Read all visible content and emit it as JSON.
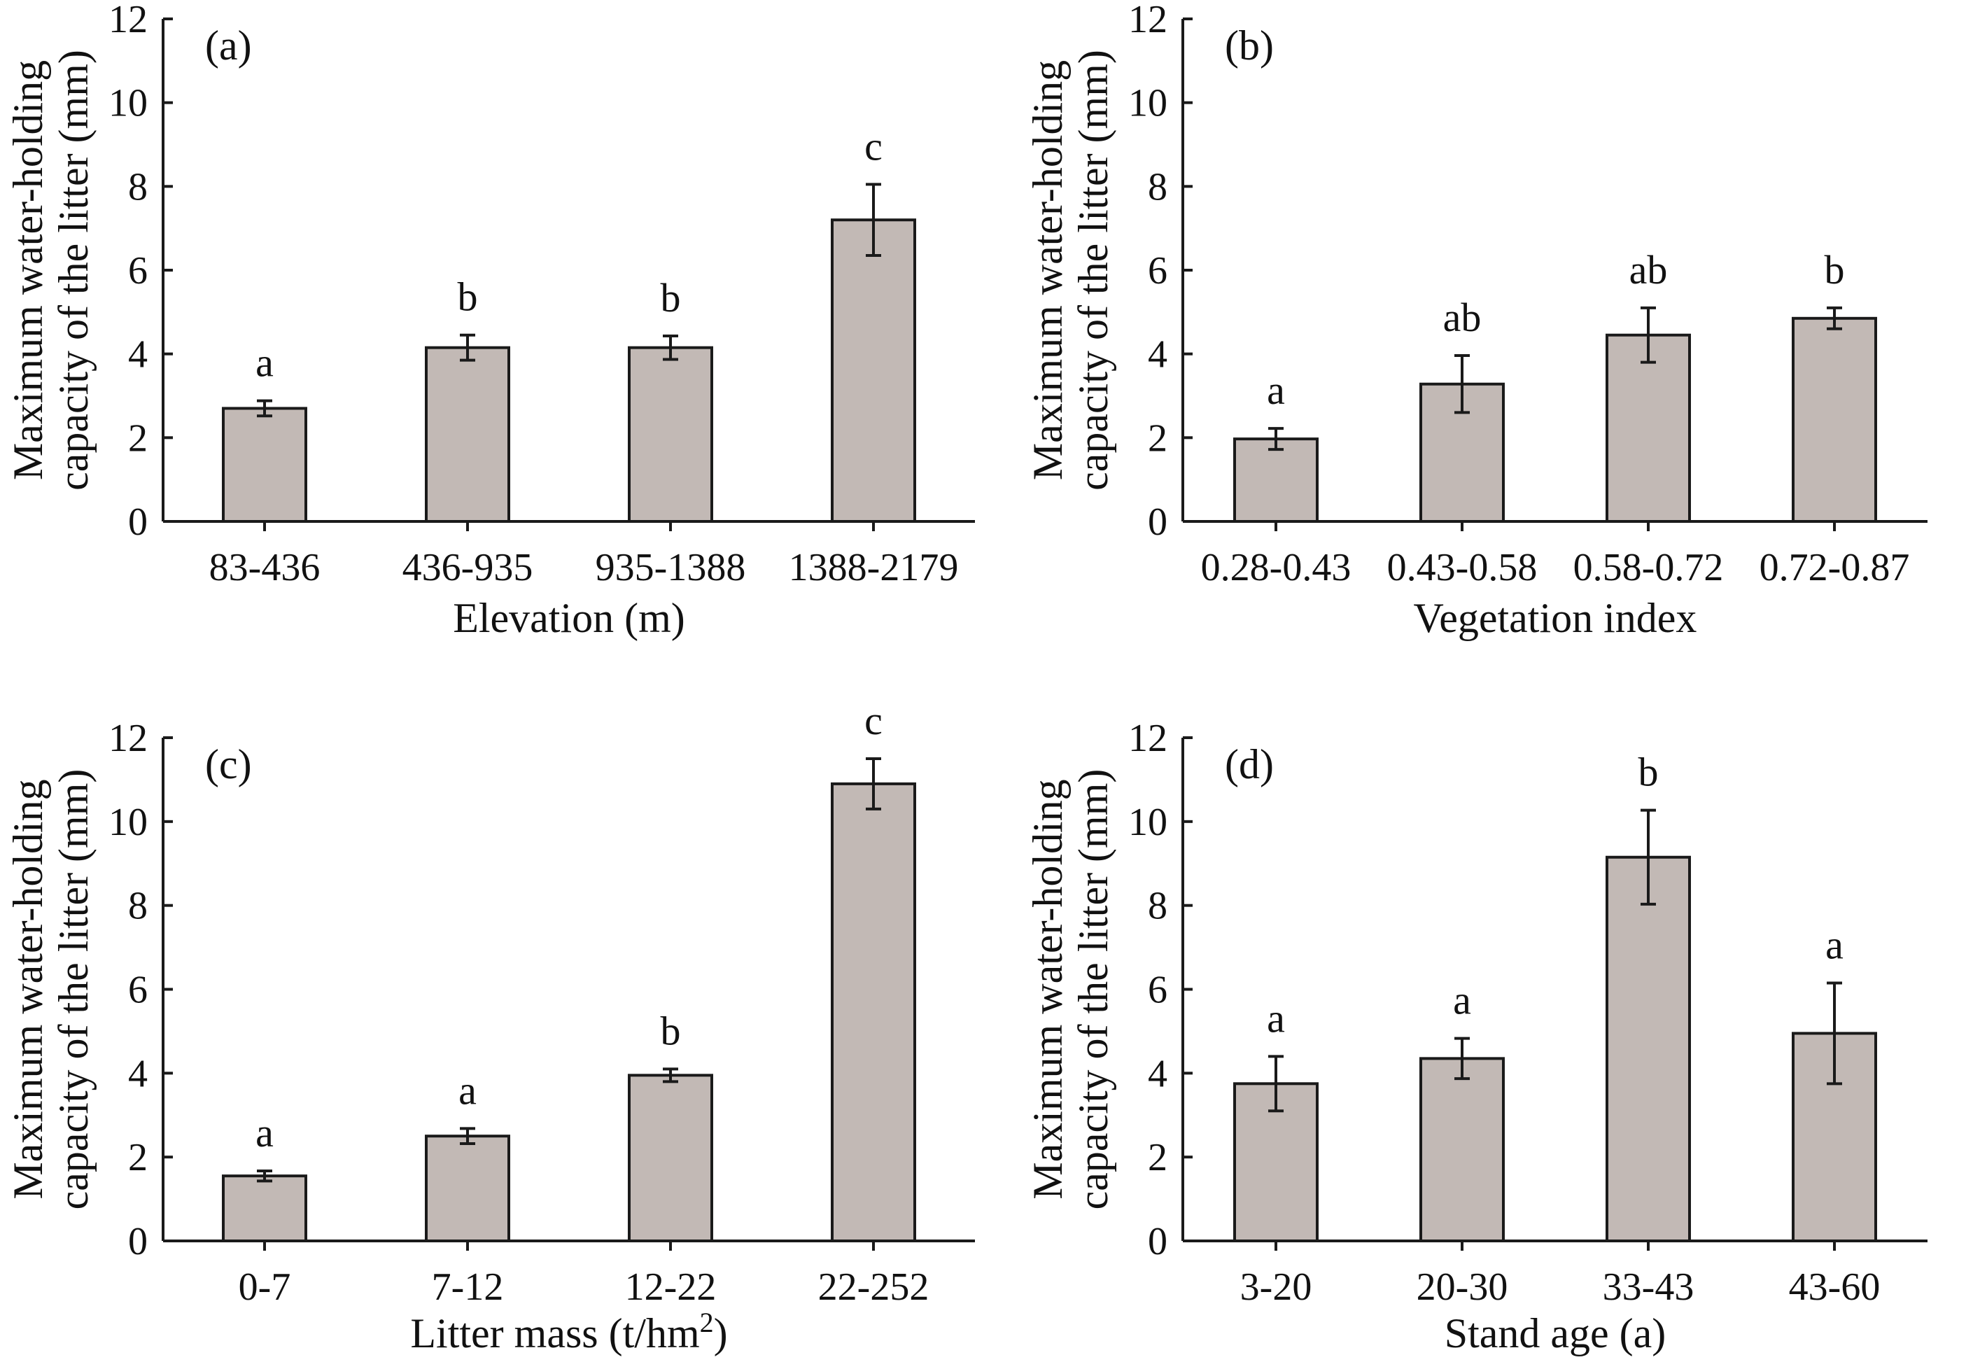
{
  "colors": {
    "bar_fill": "#c2b9b5",
    "ink": "#1a1a1a",
    "background": "#ffffff"
  },
  "chart_data": [
    {
      "panel": "(a)",
      "type": "bar",
      "title": "",
      "xlabel": "Elevation (m)",
      "ylabel": [
        "Maximum water-holding",
        "capacity of the litter (mm)"
      ],
      "ylim": [
        0,
        12
      ],
      "yticks": [
        "0",
        "2",
        "4",
        "6",
        "8",
        "10",
        "12"
      ],
      "categories": [
        "83-436",
        "436-935",
        "935-1388",
        "1388-2179"
      ],
      "values": [
        2.7,
        4.15,
        4.15,
        7.2
      ],
      "errors": [
        0.18,
        0.3,
        0.28,
        0.85
      ],
      "letters": [
        "a",
        "b",
        "b",
        "c"
      ],
      "grid": false
    },
    {
      "panel": "(b)",
      "type": "bar",
      "title": "",
      "xlabel": "Vegetation index",
      "ylabel": [
        "Maximum water-holding",
        "capacity of the litter (mm)"
      ],
      "ylim": [
        0,
        12
      ],
      "yticks": [
        "0",
        "2",
        "4",
        "6",
        "8",
        "10",
        "12"
      ],
      "categories": [
        "0.28-0.43",
        "0.43-0.58",
        "0.58-0.72",
        "0.72-0.87"
      ],
      "values": [
        1.97,
        3.28,
        4.45,
        4.85
      ],
      "errors": [
        0.25,
        0.68,
        0.65,
        0.25
      ],
      "letters": [
        "a",
        "ab",
        "ab",
        "b"
      ],
      "grid": false
    },
    {
      "panel": "(c)",
      "type": "bar",
      "title": "",
      "xlabel": "Litter mass (t/hm²)",
      "ylabel": [
        "Maximum water-holding",
        "capacity of the litter (mm)"
      ],
      "ylim": [
        0,
        12
      ],
      "yticks": [
        "0",
        "2",
        "4",
        "6",
        "8",
        "10",
        "12"
      ],
      "categories": [
        "0-7",
        "7-12",
        "12-22",
        "22-252"
      ],
      "values": [
        1.55,
        2.5,
        3.95,
        10.9
      ],
      "errors": [
        0.12,
        0.18,
        0.15,
        0.6
      ],
      "letters": [
        "a",
        "a",
        "b",
        "c"
      ],
      "grid": false
    },
    {
      "panel": "(d)",
      "type": "bar",
      "title": "",
      "xlabel": "Stand age (a)",
      "ylabel": [
        "Maximum water-holding",
        "capacity of the litter (mm)"
      ],
      "ylim": [
        0,
        12
      ],
      "yticks": [
        "0",
        "2",
        "4",
        "6",
        "8",
        "10",
        "12"
      ],
      "categories": [
        "3-20",
        "20-30",
        "33-43",
        "43-60"
      ],
      "values": [
        3.75,
        4.35,
        9.15,
        4.95
      ],
      "errors": [
        0.65,
        0.48,
        1.12,
        1.2
      ],
      "letters": [
        "a",
        "a",
        "b",
        "a"
      ],
      "grid": false
    }
  ]
}
